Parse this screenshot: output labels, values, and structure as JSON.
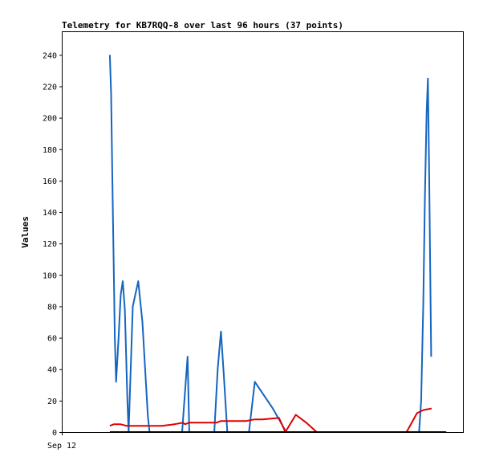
{
  "chart_data": {
    "type": "line",
    "title": "Telemetry for KB7RQQ-8 over last 96 hours (37 points)",
    "xlabel": "",
    "ylabel": "Values",
    "x_tick_labels": [
      {
        "x": 0,
        "label": "Sep 12"
      }
    ],
    "xlim": [
      0,
      96
    ],
    "ylim": [
      0,
      255
    ],
    "y_ticks": [
      0,
      20,
      40,
      60,
      80,
      100,
      120,
      140,
      160,
      180,
      200,
      220,
      240
    ],
    "grid": false,
    "legend": "none",
    "series": [
      {
        "color": "#1565c0",
        "points": [
          [
            11.5,
            240
          ],
          [
            11.8,
            215
          ],
          [
            12.1,
            162
          ],
          [
            12.4,
            110
          ],
          [
            12.7,
            60
          ],
          [
            13.0,
            32
          ],
          [
            13.6,
            60
          ],
          [
            14.1,
            87
          ],
          [
            14.6,
            96
          ],
          [
            15.1,
            78
          ],
          [
            15.7,
            20
          ],
          [
            16.0,
            0
          ],
          [
            17.0,
            80
          ],
          [
            18.3,
            96
          ],
          [
            19.3,
            70
          ],
          [
            20.6,
            10
          ],
          [
            21.0,
            0
          ],
          [
            28.8,
            0
          ],
          [
            29.6,
            30
          ],
          [
            30.1,
            48
          ],
          [
            30.5,
            0
          ],
          [
            36.5,
            0
          ],
          [
            37.3,
            40
          ],
          [
            38.1,
            64
          ],
          [
            38.8,
            35
          ],
          [
            39.6,
            0
          ],
          [
            44.8,
            0
          ],
          [
            46.2,
            32
          ],
          [
            50.5,
            15
          ],
          [
            53.7,
            0
          ],
          [
            85.5,
            0
          ],
          [
            86.0,
            20
          ],
          [
            86.5,
            80
          ],
          [
            86.9,
            150
          ],
          [
            87.3,
            203
          ],
          [
            87.6,
            225
          ],
          [
            87.9,
            168
          ],
          [
            88.4,
            48
          ]
        ]
      },
      {
        "color": "#dd0000",
        "points": [
          [
            11.5,
            4
          ],
          [
            12.5,
            5
          ],
          [
            14.0,
            5
          ],
          [
            15.5,
            4
          ],
          [
            20.0,
            4
          ],
          [
            24.0,
            4
          ],
          [
            27.0,
            5
          ],
          [
            29.0,
            6
          ],
          [
            29.5,
            5
          ],
          [
            30.5,
            6
          ],
          [
            37.0,
            6
          ],
          [
            38.0,
            7
          ],
          [
            44.0,
            7
          ],
          [
            46.0,
            8
          ],
          [
            48.0,
            8
          ],
          [
            52.0,
            9
          ],
          [
            53.5,
            0
          ],
          [
            56.0,
            11
          ],
          [
            58.5,
            6
          ],
          [
            61.0,
            0
          ],
          [
            82.5,
            0
          ],
          [
            85.0,
            12
          ],
          [
            86.5,
            14
          ],
          [
            88.5,
            15
          ]
        ]
      },
      {
        "color": "#000000",
        "points": [
          [
            11.5,
            0
          ],
          [
            20.0,
            0
          ],
          [
            30.0,
            0
          ],
          [
            40.0,
            0
          ],
          [
            50.0,
            0
          ],
          [
            60.0,
            0
          ],
          [
            70.0,
            0
          ],
          [
            80.0,
            0
          ],
          [
            92.0,
            0
          ]
        ]
      }
    ]
  }
}
